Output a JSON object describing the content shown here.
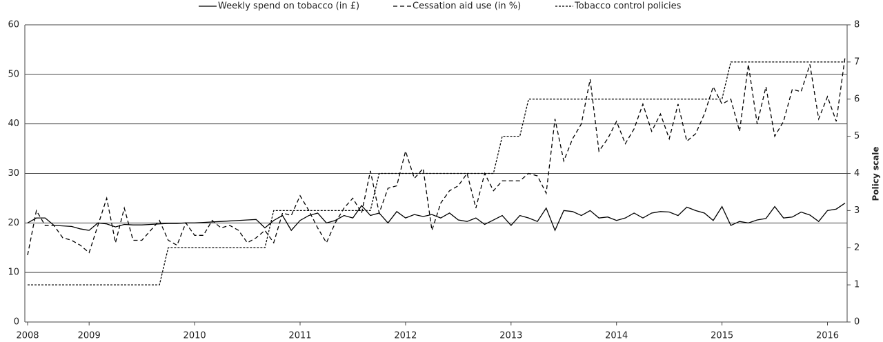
{
  "chart_data": {
    "type": "line",
    "xticks": [
      {
        "value": 0,
        "label": "2008"
      },
      {
        "value": 7,
        "label": "2009"
      },
      {
        "value": 19,
        "label": "2010"
      },
      {
        "value": 31,
        "label": "2011"
      },
      {
        "value": 43,
        "label": "2012"
      },
      {
        "value": 55,
        "label": "2013"
      },
      {
        "value": 67,
        "label": "2014"
      },
      {
        "value": 79,
        "label": "2015"
      },
      {
        "value": 91,
        "label": "2016"
      }
    ],
    "xlim": [
      0,
      93
    ],
    "x": [
      0,
      1,
      2,
      3,
      4,
      5,
      6,
      7,
      8,
      9,
      10,
      11,
      12,
      13,
      14,
      15,
      16,
      17,
      18,
      19,
      20,
      21,
      22,
      23,
      24,
      25,
      26,
      27,
      28,
      29,
      30,
      31,
      32,
      33,
      34,
      35,
      36,
      37,
      38,
      39,
      40,
      41,
      42,
      43,
      44,
      45,
      46,
      47,
      48,
      49,
      50,
      51,
      52,
      53,
      54,
      55,
      56,
      57,
      58,
      59,
      60,
      61,
      62,
      63,
      64,
      65,
      66,
      67,
      68,
      69,
      70,
      71,
      72,
      73,
      74,
      75,
      76,
      77,
      78,
      79,
      80,
      81,
      82,
      83,
      84,
      85,
      86,
      87,
      88,
      89,
      90,
      91,
      92,
      93
    ],
    "ylim": [
      0,
      60
    ],
    "yticks": [
      0,
      10,
      20,
      30,
      40,
      50,
      60
    ],
    "y2lim": [
      0,
      8
    ],
    "y2ticks": [
      0,
      1,
      2,
      3,
      4,
      5,
      6,
      7,
      8
    ],
    "y2label": "Policy scale",
    "grid": true,
    "series": [
      {
        "name": "Weekly spend on tobacco (in £)",
        "color": "#000000",
        "linestyle": "solid",
        "values": [
          20,
          21,
          21,
          19.5,
          19.4,
          19.3,
          18.8,
          18.5,
          20,
          19.8,
          19.2,
          19.7,
          19.6,
          19.6,
          19.7,
          19.8,
          19.9,
          19.9,
          20,
          20,
          20.1,
          20.2,
          20.3,
          20.4,
          20.5,
          20.6,
          20.7,
          19,
          20.5,
          21.5,
          18.5,
          20.5,
          21.5,
          22,
          20,
          20.5,
          21.5,
          21,
          23.5,
          21.5,
          22,
          20,
          22.3,
          21,
          21.7,
          21.3,
          21.7,
          21,
          22,
          20.6,
          20.3,
          21,
          19.7,
          20.6,
          21.5,
          19.5,
          21.5,
          21,
          20.3,
          23,
          18.5,
          22.5,
          22.3,
          21.5,
          22.5,
          21,
          21.2,
          20.5,
          21,
          22,
          21,
          22,
          22.3,
          22.2,
          21.5,
          23.2,
          22.5,
          22,
          20.5,
          23.3,
          19.5,
          20.3,
          20,
          20.6,
          20.9,
          23.3,
          21,
          21.2,
          22.2,
          21.6,
          20.3,
          22.5,
          22.8,
          24
        ]
      },
      {
        "name": "Cessation aid use (in %)",
        "color": "#000000",
        "linestyle": "dashed",
        "values": [
          13.5,
          22.5,
          19.5,
          19.5,
          17,
          16.5,
          15.5,
          14,
          19.5,
          25,
          16,
          23,
          16.5,
          16.5,
          18.5,
          20.5,
          16.5,
          15.5,
          20,
          17.5,
          17.5,
          20.5,
          19,
          19.5,
          18.5,
          16,
          17,
          18.5,
          16,
          22,
          21.5,
          25.5,
          22.5,
          19,
          16,
          20,
          23,
          25,
          22,
          30.5,
          22,
          27,
          27.5,
          34.5,
          29,
          31,
          18.5,
          24,
          26.5,
          27.5,
          30,
          23,
          30,
          26.5,
          28.5,
          28.5,
          28.5,
          30,
          29.5,
          26,
          41,
          32.5,
          37,
          40,
          49,
          34.5,
          37,
          40.5,
          36,
          39,
          44,
          38.5,
          42,
          37,
          44,
          36.5,
          38,
          42,
          47.5,
          44,
          45,
          38.5,
          52,
          40,
          47.5,
          37.5,
          40.5,
          47,
          46.5,
          52,
          41,
          45.5,
          40.5,
          53.5
        ]
      },
      {
        "name": "Tobacco control policies",
        "color": "#000000",
        "linestyle": "dotted",
        "axis": "y2",
        "values": [
          1,
          1,
          1,
          1,
          1,
          1,
          1,
          1,
          1,
          1,
          1,
          1,
          1,
          1,
          1,
          1,
          2,
          2,
          2,
          2,
          2,
          2,
          2,
          2,
          2,
          2,
          2,
          2,
          3,
          3,
          3,
          3,
          3,
          3,
          3,
          3,
          3,
          3,
          3,
          3,
          4,
          4,
          4,
          4,
          4,
          4,
          4,
          4,
          4,
          4,
          4,
          4,
          4,
          4,
          5,
          5,
          5,
          6,
          6,
          6,
          6,
          6,
          6,
          6,
          6,
          6,
          6,
          6,
          6,
          6,
          6,
          6,
          6,
          6,
          6,
          6,
          6,
          6,
          6,
          6,
          7,
          7,
          7,
          7,
          7,
          7,
          7,
          7,
          7,
          7,
          7,
          7,
          7,
          7
        ]
      }
    ]
  }
}
